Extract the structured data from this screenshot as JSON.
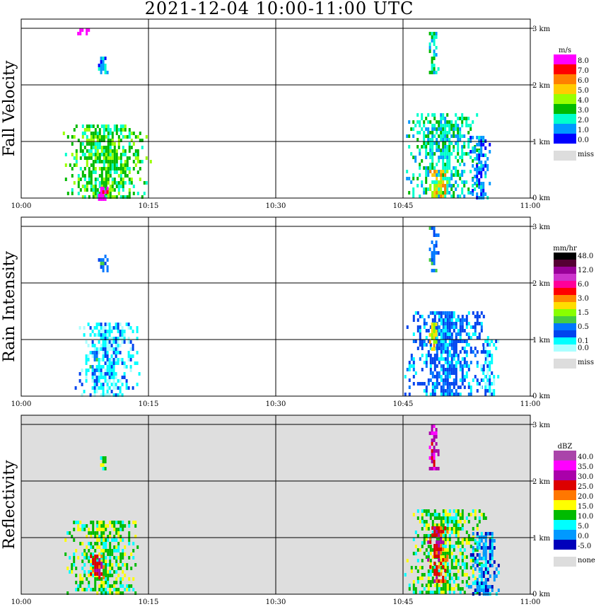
{
  "title": "2021-12-04   10:00-11:00 UTC",
  "x_tick_labels": [
    "10:00",
    "10:15",
    "10:30",
    "10:45",
    "11:00"
  ],
  "height_tick_labels": [
    "0 km",
    "1 km",
    "2 km",
    "3 km"
  ],
  "chart_data": [
    {
      "type": "heatmap",
      "ylabel": "Fall Velocity",
      "xlim": [
        "10:00",
        "11:00"
      ],
      "ylim_km": [
        0,
        3.2
      ],
      "background": "#ffffff",
      "colorbar": {
        "unit": "m/s",
        "ticks": [
          "8.0",
          "7.0",
          "6.0",
          "5.0",
          "4.0",
          "3.0",
          "2.0",
          "1.0",
          "0.0"
        ],
        "colors": [
          "#ff00ff",
          "#ff0000",
          "#ff8000",
          "#ffcc00",
          "#99ff00",
          "#00bb00",
          "#00ffcc",
          "#0099ff",
          "#0000ff"
        ],
        "missing": {
          "label": "miss",
          "color": "#dddddd"
        }
      },
      "features": [
        {
          "t0": "10:06",
          "t1": "10:14",
          "z0": 0.0,
          "z1": 1.3,
          "level": 3
        },
        {
          "t0": "10:09",
          "t1": "10:10",
          "z0": 0.0,
          "z1": 0.2,
          "level": 8
        },
        {
          "t0": "10:09",
          "t1": "10:10",
          "z0": 2.2,
          "z1": 2.5,
          "level": 1
        },
        {
          "t0": "10:06",
          "t1": "10:08",
          "z0": 2.9,
          "z1": 3.0,
          "level": 9
        },
        {
          "t0": "10:46",
          "t1": "10:53",
          "z0": 0.0,
          "z1": 1.5,
          "level": 2
        },
        {
          "t0": "10:48",
          "t1": "10:50",
          "z0": 0.0,
          "z1": 0.5,
          "level": 5
        },
        {
          "t0": "10:53",
          "t1": "10:55",
          "z0": 0.0,
          "z1": 1.1,
          "level": 1
        },
        {
          "t0": "10:48",
          "t1": "10:49",
          "z0": 2.2,
          "z1": 3.0,
          "level": 2
        }
      ]
    },
    {
      "type": "heatmap",
      "ylabel": "Rain Intensity",
      "xlim": [
        "10:00",
        "11:00"
      ],
      "ylim_km": [
        0,
        3.2
      ],
      "background": "#ffffff",
      "colorbar": {
        "unit": "mm/hr",
        "ticks": [
          "48.0",
          "",
          "12.0",
          "",
          "6.0",
          "",
          "3.0",
          "",
          "1.5",
          "",
          "0.5",
          "",
          "0.1",
          "0.0"
        ],
        "colors": [
          "#000000",
          "#550033",
          "#990099",
          "#cc33cc",
          "#ff0099",
          "#ff0000",
          "#ff8800",
          "#ffdd00",
          "#88ff00",
          "#44cc44",
          "#0077ff",
          "#0044ee",
          "#00ffff",
          "#aaffff"
        ],
        "missing": {
          "label": "miss",
          "color": "#dddddd"
        }
      },
      "features": [
        {
          "t0": "10:07",
          "t1": "10:13",
          "z0": 0.0,
          "z1": 1.3,
          "level": 1
        },
        {
          "t0": "10:08",
          "t1": "10:09",
          "z0": 0.4,
          "z1": 0.8,
          "level": 3
        },
        {
          "t0": "10:09",
          "t1": "10:10",
          "z0": 2.2,
          "z1": 2.5,
          "level": 3
        },
        {
          "t0": "10:46",
          "t1": "10:54",
          "z0": 0.0,
          "z1": 1.5,
          "level": 2
        },
        {
          "t0": "10:48",
          "t1": "10:49",
          "z0": 0.8,
          "z1": 1.3,
          "level": 6
        },
        {
          "t0": "10:54",
          "t1": "10:56",
          "z0": 0.0,
          "z1": 1.0,
          "level": 1
        },
        {
          "t0": "10:48",
          "t1": "10:49",
          "z0": 2.2,
          "z1": 3.0,
          "level": 3
        }
      ]
    },
    {
      "type": "heatmap",
      "ylabel": "Reflectivity",
      "xlim": [
        "10:00",
        "11:00"
      ],
      "ylim_km": [
        0,
        3.2
      ],
      "background": "#dedede",
      "colorbar": {
        "unit": "dBZ",
        "ticks": [
          "40.0",
          "35.0",
          "30.0",
          "25.0",
          "20.0",
          "15.0",
          "10.0",
          "5.0",
          "0.0",
          "-5.0"
        ],
        "colors": [
          "#aa44aa",
          "#ff00ff",
          "#aa00aa",
          "#dd0000",
          "#ff7700",
          "#ffff00",
          "#00bb00",
          "#00ffff",
          "#0099ff",
          "#0000bb"
        ],
        "missing": {
          "label": "none",
          "color": "#dddddd"
        }
      },
      "features": [
        {
          "t0": "10:06",
          "t1": "10:13",
          "z0": 0.0,
          "z1": 1.3,
          "level": 3
        },
        {
          "t0": "10:08",
          "t1": "10:10",
          "z0": 0.3,
          "z1": 0.7,
          "level": 6
        },
        {
          "t0": "10:09",
          "t1": "10:10",
          "z0": 2.2,
          "z1": 2.5,
          "level": 3
        },
        {
          "t0": "10:46",
          "t1": "10:54",
          "z0": 0.0,
          "z1": 1.5,
          "level": 3
        },
        {
          "t0": "10:48",
          "t1": "10:50",
          "z0": 0.2,
          "z1": 1.2,
          "level": 6
        },
        {
          "t0": "10:53",
          "t1": "10:56",
          "z0": 0.0,
          "z1": 1.1,
          "level": 1
        },
        {
          "t0": "10:48",
          "t1": "10:49",
          "z0": 2.2,
          "z1": 3.0,
          "level": 7
        }
      ]
    }
  ]
}
